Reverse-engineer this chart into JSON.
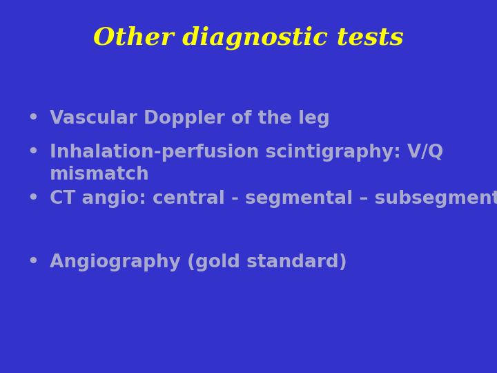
{
  "title": "Other diagnostic tests",
  "title_color": "#FFFF00",
  "title_fontsize": 26,
  "background_color": "#3333CC",
  "bullet_color": "#AAAACC",
  "bullet_fontsize": 19,
  "bullet_items": [
    "Vascular Doppler of the leg",
    "Inhalation-perfusion scintigraphy: V/Q\nmismatch",
    "CT angio: central - segmental – subsegmental"
  ],
  "bullet_items_spaced": [
    "Angiography (gold standard)"
  ],
  "bullet_char": "•",
  "figsize": [
    7.2,
    5.4
  ],
  "dpi": 100
}
